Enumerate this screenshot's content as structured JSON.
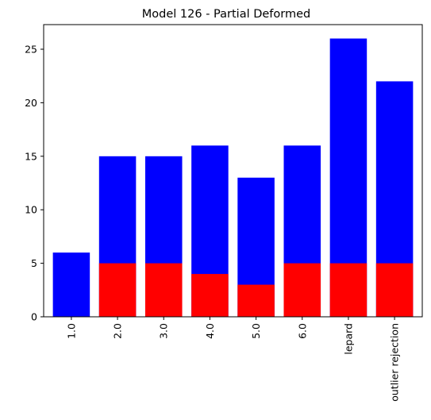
{
  "chart_data": {
    "type": "bar",
    "title": "Model 126 - Partial Deformed",
    "xlabel": "",
    "ylabel": "",
    "categories": [
      "1.0",
      "2.0",
      "3.0",
      "4.0",
      "5.0",
      "6.0",
      "lepard",
      "outlier rejection"
    ],
    "ylim": [
      0,
      27.3
    ],
    "yticks": [
      0,
      5,
      10,
      15,
      20,
      25
    ],
    "grid": false,
    "series": [
      {
        "color": "#0000ff",
        "values": [
          6,
          15,
          15,
          16,
          13,
          16,
          26,
          22
        ]
      },
      {
        "color": "#ff0000",
        "values": [
          0,
          5,
          5,
          4,
          3,
          5,
          5,
          5
        ]
      }
    ]
  }
}
